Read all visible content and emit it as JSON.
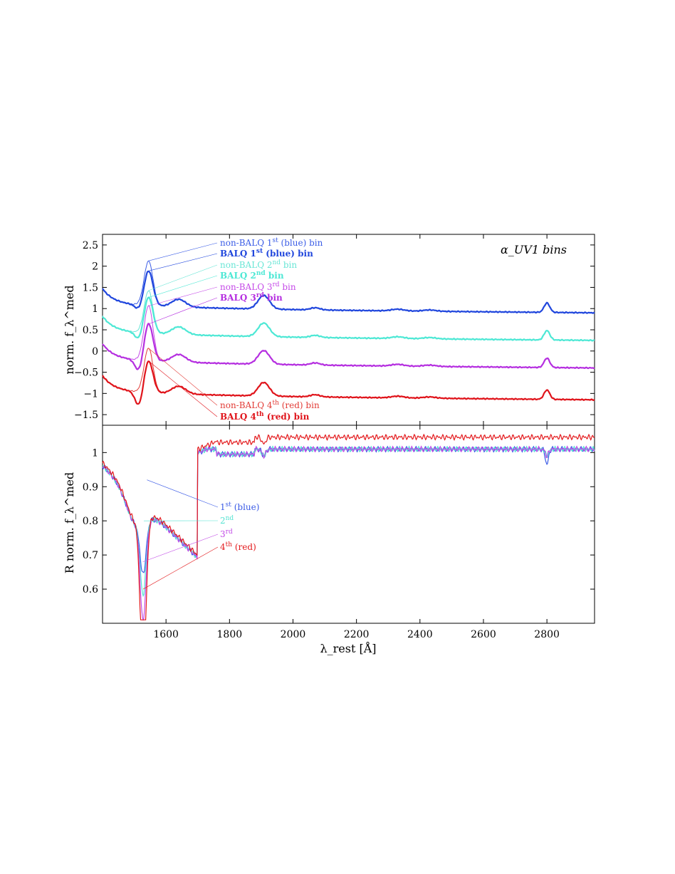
{
  "chart_data": [
    {
      "type": "line",
      "panel": "top",
      "annotation": "α_UV1 bins",
      "ylabel": "norm. f_λ^med",
      "xlim": [
        1400,
        2950
      ],
      "ylim": [
        -1.75,
        2.75
      ],
      "yticks": [
        -1.5,
        -1,
        -0.5,
        0,
        0.5,
        1,
        1.5,
        2,
        2.5
      ],
      "ytick_labels": [
        "−1.5",
        "−1",
        "−0.5",
        "0",
        "0.5",
        "1",
        "1.5",
        "2",
        "2.5"
      ],
      "grid": false,
      "series": [
        {
          "name": "non-BALQ 1st (blue) bin",
          "label_main": "non-BALQ 1",
          "label_sup": "st",
          "label_tail": " (blue) bin",
          "bold": false,
          "color": "#3a5ce6",
          "offset": 1.0,
          "civ_peak": 1.05,
          "civ_abs": 0.0
        },
        {
          "name": "BALQ 1st (blue) bin",
          "label_main": "BALQ 1",
          "label_sup": "st",
          "label_tail": " (blue) bin",
          "bold": true,
          "color": "#2147dd",
          "offset": 1.0,
          "civ_peak": 0.82,
          "civ_abs": 0.12
        },
        {
          "name": "non-BALQ 2nd bin",
          "label_main": "non-BALQ 2",
          "label_sup": "nd",
          "label_tail": " bin",
          "bold": false,
          "color": "#69e6d6",
          "offset": 0.35,
          "civ_peak": 1.0,
          "civ_abs": 0.0
        },
        {
          "name": "BALQ 2nd bin",
          "label_main": "BALQ 2",
          "label_sup": "nd",
          "label_tail": " bin",
          "bold": true,
          "color": "#4ee8d5",
          "offset": 0.35,
          "civ_peak": 0.85,
          "civ_abs": 0.18
        },
        {
          "name": "non-BALQ 3rd bin",
          "label_main": "non-BALQ 3",
          "label_sup": "rd",
          "label_tail": " bin",
          "bold": false,
          "color": "#c54ae8",
          "offset": -0.3,
          "civ_peak": 1.3,
          "civ_abs": 0.0
        },
        {
          "name": "BALQ 3rd bin",
          "label_main": "BALQ 3",
          "label_sup": "rd",
          "label_tail": " bin",
          "bold": true,
          "color": "#b52fe0",
          "offset": -0.3,
          "civ_peak": 0.88,
          "civ_abs": 0.28
        },
        {
          "name": "non-BALQ 4th (red) bin",
          "label_main": "non-BALQ 4",
          "label_sup": "th",
          "label_tail": " (red) bin",
          "bold": false,
          "color": "#e23b36",
          "offset": -1.05,
          "civ_peak": 1.05,
          "civ_abs": 0.0
        },
        {
          "name": "BALQ 4th (red) bin",
          "label_main": "BALQ 4",
          "label_sup": "th",
          "label_tail": " (red) bin",
          "bold": true,
          "color": "#e0141b",
          "offset": -1.05,
          "civ_peak": 0.75,
          "civ_abs": 0.35
        }
      ],
      "features": {
        "civ_center": 1545,
        "ciii_center": 1908,
        "mgii_center": 2800,
        "ciii_height": 0.32,
        "mgii_height": 0.22
      }
    },
    {
      "type": "line",
      "panel": "bottom",
      "xlabel": "λ_rest [Å]",
      "ylabel": "R norm. f_λ^med",
      "xlim": [
        1400,
        2950
      ],
      "ylim": [
        0.5,
        1.08
      ],
      "xticks": [
        1600,
        1800,
        2000,
        2200,
        2400,
        2600,
        2800
      ],
      "yticks": [
        0.6,
        0.7,
        0.8,
        0.9,
        1.0
      ],
      "ytick_labels": [
        "0.6",
        "0.7",
        "0.8",
        "0.9",
        "1"
      ],
      "grid": false,
      "series": [
        {
          "name": "1st (blue)",
          "label_main": "1",
          "label_sup": "st",
          "label_tail": " (blue)",
          "color": "#3b5be6",
          "trough_min": 0.84,
          "tail_level": 1.01,
          "mg_dip": 0.045
        },
        {
          "name": "2nd",
          "label_main": "2",
          "label_sup": "nd",
          "label_tail": "",
          "color": "#56e3d2",
          "trough_min": 0.77,
          "tail_level": 1.01,
          "mg_dip": 0.02
        },
        {
          "name": "3rd",
          "label_main": "3",
          "label_sup": "rd",
          "label_tail": "",
          "color": "#c14ae6",
          "trough_min": 0.68,
          "tail_level": 1.01,
          "mg_dip": 0.02
        },
        {
          "name": "4th (red)",
          "label_main": "4",
          "label_sup": "th",
          "label_tail": " (red)",
          "color": "#e3191c",
          "trough_min": 0.52,
          "tail_level": 1.045,
          "mg_dip": 0.0
        }
      ]
    }
  ]
}
